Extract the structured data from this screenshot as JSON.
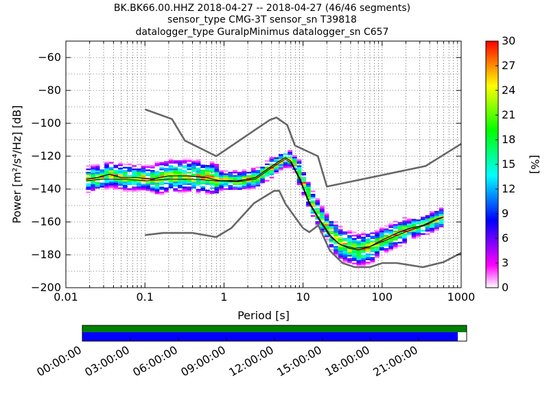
{
  "title_lines": [
    "BK.BK66.00.HHZ   2018-04-27 -- 2018-04-27  (46/46 segments)",
    "sensor_type CMG-3T sensor_sn T39818",
    "datalogger_type GuralpMinimus datalogger_sn C657"
  ],
  "chart_data": {
    "type": "heatmap",
    "xlabel": "Period [s]",
    "ylabel": "Power [m²/s⁴/Hz] [dB]",
    "xscale": "log",
    "xlim": [
      0.01,
      1000
    ],
    "ylim": [
      -200,
      -50
    ],
    "x_ticks": [
      {
        "v": 0.01,
        "label": "0.01"
      },
      {
        "v": 0.1,
        "label": "0.1"
      },
      {
        "v": 1,
        "label": "1"
      },
      {
        "v": 10,
        "label": "10"
      },
      {
        "v": 100,
        "label": "100"
      },
      {
        "v": 1000,
        "label": "1000"
      }
    ],
    "y_ticks": [
      {
        "v": -60,
        "label": "−60"
      },
      {
        "v": -80,
        "label": "−80"
      },
      {
        "v": -100,
        "label": "−100"
      },
      {
        "v": -120,
        "label": "−120"
      },
      {
        "v": -140,
        "label": "−140"
      },
      {
        "v": -160,
        "label": "−160"
      },
      {
        "v": -180,
        "label": "−180"
      },
      {
        "v": -200,
        "label": "−200"
      }
    ],
    "grid": true,
    "colorbar": {
      "label": "[%]",
      "range": [
        0,
        30
      ],
      "ticks": [
        {
          "v": 0,
          "label": "0"
        },
        {
          "v": 3,
          "label": "3"
        },
        {
          "v": 6,
          "label": "6"
        },
        {
          "v": 9,
          "label": "9"
        },
        {
          "v": 12,
          "label": "12"
        },
        {
          "v": 15,
          "label": "15"
        },
        {
          "v": 18,
          "label": "18"
        },
        {
          "v": 21,
          "label": "21"
        },
        {
          "v": 24,
          "label": "24"
        },
        {
          "v": 27,
          "label": "27"
        },
        {
          "v": 30,
          "label": "30"
        }
      ],
      "colors": [
        "#ffffff",
        "#ff00ff",
        "#8000ff",
        "#0000ff",
        "#0080ff",
        "#00ffff",
        "#00ff80",
        "#00ff00",
        "#80ff00",
        "#ffff00",
        "#ff8000",
        "#ff0000"
      ]
    },
    "nhnm": [
      [
        0.1,
        -91.5
      ],
      [
        0.22,
        -97.4
      ],
      [
        0.32,
        -110.5
      ],
      [
        0.8,
        -120
      ],
      [
        3.8,
        -97.9
      ],
      [
        4.6,
        -96.5
      ],
      [
        6.3,
        -101
      ],
      [
        7.9,
        -113.5
      ],
      [
        15.4,
        -120
      ],
      [
        20,
        -138.5
      ],
      [
        354.8,
        -126
      ],
      [
        1000,
        -112.5
      ]
    ],
    "nlnm": [
      [
        0.1,
        -168
      ],
      [
        0.17,
        -166.7
      ],
      [
        0.4,
        -166.7
      ],
      [
        0.8,
        -169.2
      ],
      [
        1.24,
        -163.7
      ],
      [
        2.4,
        -148.6
      ],
      [
        4.3,
        -141.1
      ],
      [
        5,
        -141.1
      ],
      [
        6,
        -149
      ],
      [
        10,
        -163.8
      ],
      [
        12,
        -166.2
      ],
      [
        15.6,
        -162.1
      ],
      [
        21.9,
        -177.5
      ],
      [
        31.6,
        -185
      ],
      [
        45,
        -187.5
      ],
      [
        70,
        -187.5
      ],
      [
        101,
        -185
      ],
      [
        154,
        -185
      ],
      [
        328,
        -187.5
      ],
      [
        600,
        -184.4
      ],
      [
        1000,
        -178.8
      ]
    ],
    "mode_curve": [
      [
        0.018,
        -134
      ],
      [
        0.025,
        -133
      ],
      [
        0.035,
        -131
      ],
      [
        0.05,
        -133
      ],
      [
        0.08,
        -133
      ],
      [
        0.12,
        -134
      ],
      [
        0.2,
        -132
      ],
      [
        0.35,
        -132
      ],
      [
        0.6,
        -133
      ],
      [
        0.9,
        -135
      ],
      [
        1.5,
        -135
      ],
      [
        2.5,
        -133
      ],
      [
        3.5,
        -128
      ],
      [
        5,
        -123
      ],
      [
        6,
        -121
      ],
      [
        7,
        -123
      ],
      [
        9,
        -133
      ],
      [
        12,
        -148
      ],
      [
        16,
        -158
      ],
      [
        22,
        -168
      ],
      [
        28,
        -173
      ],
      [
        38,
        -176
      ],
      [
        50,
        -177
      ],
      [
        70,
        -175
      ],
      [
        100,
        -171
      ],
      [
        150,
        -167
      ],
      [
        220,
        -164
      ],
      [
        330,
        -162
      ],
      [
        500,
        -158
      ],
      [
        600,
        -157
      ]
    ],
    "mean_curve": [
      [
        0.018,
        -135
      ],
      [
        0.03,
        -134
      ],
      [
        0.06,
        -134
      ],
      [
        0.1,
        -135
      ],
      [
        0.2,
        -134
      ],
      [
        0.4,
        -134
      ],
      [
        0.8,
        -135
      ],
      [
        1.5,
        -135.5
      ],
      [
        2.5,
        -134
      ],
      [
        3.5,
        -129
      ],
      [
        5,
        -124
      ],
      [
        6,
        -122
      ],
      [
        7,
        -124
      ],
      [
        9,
        -134
      ],
      [
        12,
        -149
      ],
      [
        16,
        -159
      ],
      [
        22,
        -169
      ],
      [
        30,
        -174
      ],
      [
        45,
        -176
      ],
      [
        70,
        -175
      ],
      [
        100,
        -172
      ],
      [
        200,
        -166
      ],
      [
        350,
        -162
      ],
      [
        600,
        -157
      ]
    ],
    "density_bands": [
      {
        "p": [
          0.018,
          0.13
        ],
        "c": -133,
        "s": 3
      },
      {
        "p": [
          0.13,
          0.8
        ],
        "c": -133,
        "s": 4
      },
      {
        "p": [
          0.8,
          2.5
        ],
        "c": -134.5,
        "s": 2
      },
      {
        "p": [
          2.5,
          4
        ],
        "c": -130,
        "s": 2
      },
      {
        "p": [
          4,
          8
        ],
        "c": -124,
        "s": 1.5
      },
      {
        "p": [
          8,
          13
        ],
        "c": -142,
        "s": 3
      },
      {
        "p": [
          13,
          20
        ],
        "c": -160,
        "s": 3
      },
      {
        "p": [
          20,
          40
        ],
        "c": -172,
        "s": 4
      },
      {
        "p": [
          40,
          80
        ],
        "c": -175,
        "s": 4
      },
      {
        "p": [
          80,
          200
        ],
        "c": -169,
        "s": 3
      },
      {
        "p": [
          200,
          400
        ],
        "c": -163,
        "s": 2
      },
      {
        "p": [
          400,
          650
        ],
        "c": -156,
        "s": 2
      }
    ],
    "hour_ticks": [
      "00:00:00",
      "03:00:00",
      "06:00:00",
      "09:00:00",
      "12:00:00",
      "15:00:00",
      "18:00:00",
      "21:00:00"
    ],
    "coverage": {
      "data_color": "#0000ff",
      "gap_color": "#008000",
      "blue_fraction": 0.977
    }
  }
}
